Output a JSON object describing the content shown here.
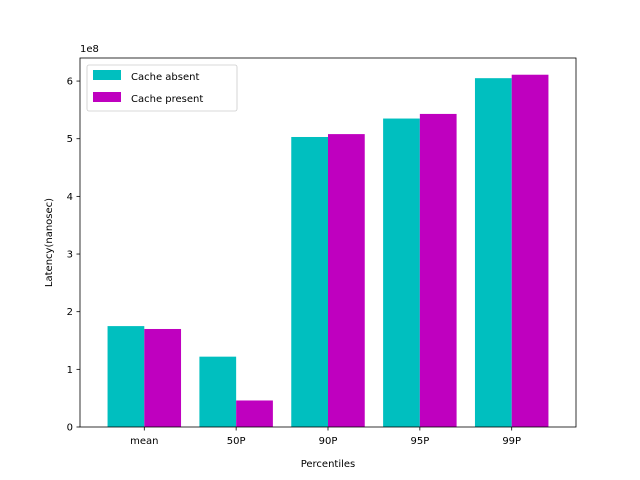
{
  "chart_data": {
    "type": "bar",
    "categories": [
      "mean",
      "50P",
      "90P",
      "95P",
      "99P"
    ],
    "series": [
      {
        "name": "Cache absent",
        "color": "#00bfbf",
        "values": [
          175000000,
          122000000,
          503000000,
          535000000,
          605000000
        ]
      },
      {
        "name": "Cache present",
        "color": "#bf00bf",
        "values": [
          170000000,
          46000000,
          508000000,
          543000000,
          611000000
        ]
      }
    ],
    "title": "",
    "xlabel": "Percentiles",
    "ylabel": "Latency(nanosec)",
    "y_scale_label": "1e8",
    "y_scale": 100000000,
    "yticks": [
      0,
      1,
      2,
      3,
      4,
      5,
      6
    ],
    "ylim": [
      0,
      640000000
    ],
    "legend_position": "upper-left",
    "grid": false
  }
}
